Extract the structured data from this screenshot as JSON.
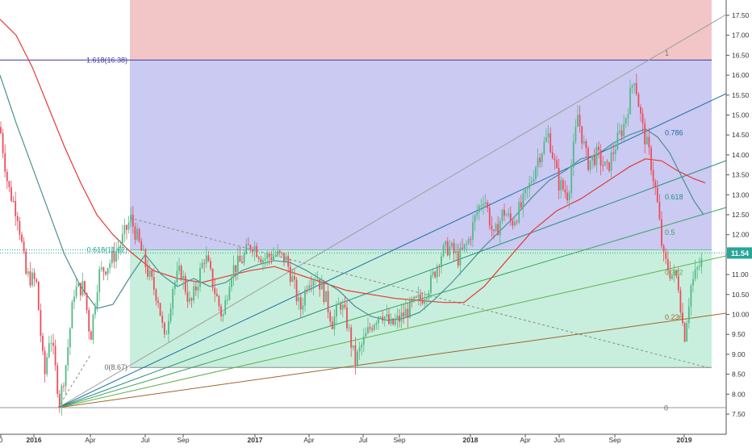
{
  "chart_data": {
    "type": "candlestick",
    "title": "",
    "xlabel": "",
    "ylabel": "",
    "ylim": [
      7.35,
      17.75
    ],
    "grid": false,
    "x_tick_labels": [
      "0",
      "2016",
      "Apr",
      "Jul",
      "Sep",
      "2017",
      "Apr",
      "Jul",
      "Sep",
      "2018",
      "Apr",
      "Jun",
      "Sep",
      "2019"
    ],
    "y_tick_labels": [
      "7.50",
      "8.00",
      "8.50",
      "9.00",
      "9.50",
      "10.00",
      "10.50",
      "11.00",
      "11.50",
      "12.00",
      "12.50",
      "13.00",
      "13.50",
      "14.00",
      "14.50",
      "15.00",
      "15.50",
      "16.00",
      "16.50",
      "17.00",
      "17.50"
    ],
    "last_price": "11.54",
    "colors": {
      "up": "#53b987",
      "down": "#eb4d5c",
      "ma_long": "#e53935",
      "ma_short": "#4a8f94",
      "last_price": "#26a69a"
    },
    "fib_retracement_labels": [
      "1.618(16.38)",
      "0.618(11.62)",
      "0(8.67)"
    ],
    "fib_retracement_levels": [
      16.38,
      11.62,
      8.67
    ],
    "fan_labels": [
      "1",
      "0.786",
      "0.618",
      "0.5",
      "0.382",
      "0.236",
      "0"
    ],
    "fan_label_values": [
      16.55,
      14.55,
      12.95,
      12.05,
      11.05,
      9.93,
      7.65
    ],
    "price_path": [
      [
        0.0,
        14.7
      ],
      [
        10.0,
        13.2
      ],
      [
        22.0,
        12.5
      ],
      [
        32.0,
        11.0
      ],
      [
        45.0,
        10.8
      ],
      [
        55.0,
        8.4
      ],
      [
        62.0,
        9.6
      ],
      [
        74.0,
        7.8
      ],
      [
        82.0,
        8.8
      ],
      [
        92.0,
        10.6
      ],
      [
        104.0,
        10.7
      ],
      [
        112.0,
        9.4
      ],
      [
        122.0,
        11.0
      ],
      [
        136.0,
        11.3
      ],
      [
        150.0,
        11.8
      ],
      [
        162.0,
        12.4
      ],
      [
        172.0,
        11.8
      ],
      [
        184.0,
        11.0
      ],
      [
        196.0,
        10.4
      ],
      [
        204.0,
        9.3
      ],
      [
        214.0,
        10.7
      ],
      [
        224.0,
        11.1
      ],
      [
        236.0,
        10.2
      ],
      [
        246.0,
        10.9
      ],
      [
        254.0,
        11.5
      ],
      [
        266.0,
        10.6
      ],
      [
        276.0,
        9.9
      ],
      [
        286.0,
        11.1
      ],
      [
        298.0,
        11.3
      ],
      [
        312.0,
        11.8
      ],
      [
        326.0,
        11.4
      ],
      [
        340.0,
        11.5
      ],
      [
        354.0,
        11.4
      ],
      [
        362.0,
        10.9
      ],
      [
        372.0,
        10.1
      ],
      [
        382.0,
        10.9
      ],
      [
        392.0,
        11.0
      ],
      [
        402.0,
        10.5
      ],
      [
        412.0,
        9.8
      ],
      [
        422.0,
        10.3
      ],
      [
        430.0,
        9.8
      ],
      [
        440.0,
        8.8
      ],
      [
        450.0,
        9.3
      ],
      [
        462.0,
        9.8
      ],
      [
        472.0,
        10.1
      ],
      [
        484.0,
        9.7
      ],
      [
        496.0,
        9.9
      ],
      [
        510.0,
        10.2
      ],
      [
        522.0,
        10.4
      ],
      [
        534.0,
        10.8
      ],
      [
        546.0,
        11.5
      ],
      [
        556.0,
        11.7
      ],
      [
        568.0,
        11.4
      ],
      [
        580.0,
        11.8
      ],
      [
        590.0,
        12.5
      ],
      [
        600.0,
        13.0
      ],
      [
        612.0,
        11.9
      ],
      [
        624.0,
        12.6
      ],
      [
        634.0,
        12.3
      ],
      [
        646.0,
        12.7
      ],
      [
        656.0,
        13.2
      ],
      [
        666.0,
        13.9
      ],
      [
        680.0,
        14.5
      ],
      [
        692.0,
        13.3
      ],
      [
        704.0,
        13.0
      ],
      [
        716.0,
        15.0
      ],
      [
        728.0,
        13.8
      ],
      [
        740.0,
        14.0
      ],
      [
        752.0,
        13.6
      ],
      [
        762.0,
        14.2
      ],
      [
        774.0,
        14.8
      ],
      [
        786.0,
        16.0
      ],
      [
        796.0,
        14.7
      ],
      [
        806.0,
        13.9
      ],
      [
        814.0,
        12.9
      ],
      [
        822.0,
        11.4
      ],
      [
        832.0,
        11.0
      ],
      [
        840.0,
        10.9
      ],
      [
        848.0,
        9.4
      ],
      [
        856.0,
        10.7
      ],
      [
        864.0,
        11.1
      ],
      [
        874.0,
        11.5
      ]
    ],
    "ma_long_path": [
      [
        0.0,
        17.4
      ],
      [
        20.0,
        17.0
      ],
      [
        40.0,
        16.2
      ],
      [
        60.0,
        15.2
      ],
      [
        80.0,
        14.2
      ],
      [
        100.0,
        13.3
      ],
      [
        120.0,
        12.5
      ],
      [
        140.0,
        12.0
      ],
      [
        160.0,
        11.6
      ],
      [
        190.0,
        11.1
      ],
      [
        220.0,
        10.9
      ],
      [
        250.0,
        10.8
      ],
      [
        280.0,
        10.95
      ],
      [
        310.0,
        11.1
      ],
      [
        340.0,
        11.2
      ],
      [
        370.0,
        11.0
      ],
      [
        400.0,
        10.8
      ],
      [
        430.0,
        10.6
      ],
      [
        460.0,
        10.5
      ],
      [
        490.0,
        10.4
      ],
      [
        520.0,
        10.35
      ],
      [
        550.0,
        10.3
      ],
      [
        575.0,
        10.3
      ],
      [
        600.0,
        10.7
      ],
      [
        630.0,
        11.4
      ],
      [
        660.0,
        12.1
      ],
      [
        690.0,
        12.6
      ],
      [
        720.0,
        12.9
      ],
      [
        750.0,
        13.3
      ],
      [
        780.0,
        13.7
      ],
      [
        800.0,
        13.9
      ],
      [
        820.0,
        13.85
      ],
      [
        840.0,
        13.6
      ],
      [
        860.0,
        13.4
      ],
      [
        874.0,
        13.3
      ]
    ],
    "ma_short_path": [
      [
        0.0,
        16.0
      ],
      [
        20.0,
        14.8
      ],
      [
        40.0,
        13.7
      ],
      [
        60.0,
        12.6
      ],
      [
        80.0,
        11.5
      ],
      [
        100.0,
        10.7
      ],
      [
        120.0,
        10.15
      ],
      [
        140.0,
        10.25
      ],
      [
        160.0,
        10.9
      ],
      [
        180.0,
        11.5
      ],
      [
        200.0,
        11.0
      ],
      [
        220.0,
        10.7
      ],
      [
        240.0,
        10.9
      ],
      [
        260.0,
        10.7
      ],
      [
        280.0,
        10.8
      ],
      [
        300.0,
        11.1
      ],
      [
        320.0,
        11.25
      ],
      [
        340.0,
        11.35
      ],
      [
        360.0,
        11.3
      ],
      [
        380.0,
        11.1
      ],
      [
        400.0,
        10.85
      ],
      [
        420.0,
        10.6
      ],
      [
        440.0,
        10.2
      ],
      [
        460.0,
        9.95
      ],
      [
        480.0,
        9.85
      ],
      [
        500.0,
        9.9
      ],
      [
        520.0,
        10.05
      ],
      [
        540.0,
        10.4
      ],
      [
        560.0,
        10.8
      ],
      [
        580.0,
        11.25
      ],
      [
        600.0,
        11.7
      ],
      [
        620.0,
        12.1
      ],
      [
        640.0,
        12.5
      ],
      [
        660.0,
        12.95
      ],
      [
        680.0,
        13.35
      ],
      [
        700.0,
        13.6
      ],
      [
        720.0,
        13.9
      ],
      [
        740.0,
        14.0
      ],
      [
        760.0,
        14.3
      ],
      [
        780.0,
        14.5
      ],
      [
        800.0,
        14.65
      ],
      [
        815.0,
        14.45
      ],
      [
        830.0,
        14.05
      ],
      [
        845.0,
        13.45
      ],
      [
        860.0,
        12.85
      ],
      [
        872.0,
        12.5
      ]
    ]
  }
}
